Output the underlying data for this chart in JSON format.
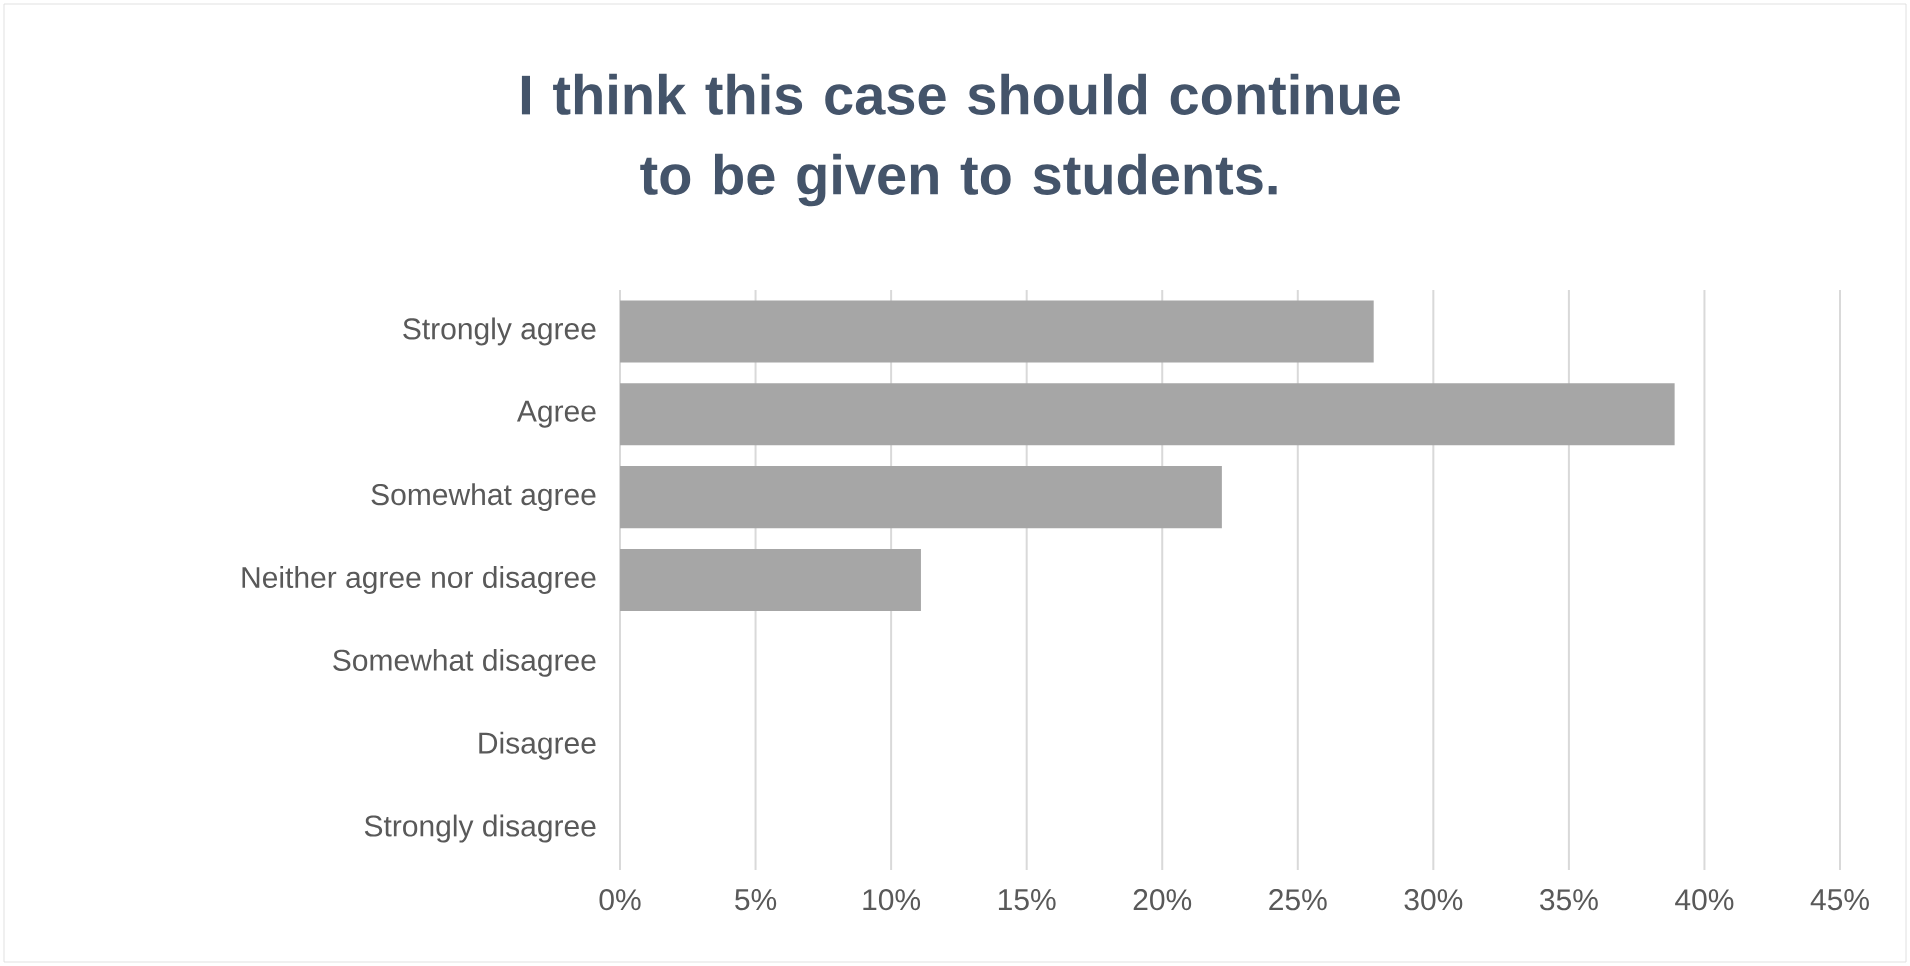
{
  "chart_data": {
    "type": "bar",
    "orientation": "horizontal",
    "title": "I think this case should continue to be given to students.",
    "categories": [
      "Strongly agree",
      "Agree",
      "Somewhat agree",
      "Neither agree nor disagree",
      "Somewhat disagree",
      "Disagree",
      "Strongly disagree"
    ],
    "values": [
      27.8,
      38.9,
      22.2,
      11.1,
      0,
      0,
      0
    ],
    "color": "#a6a6a6",
    "xlim": [
      0,
      45
    ],
    "xticks": [
      {
        "value": 0,
        "label": "0%"
      },
      {
        "value": 5,
        "label": "5%"
      },
      {
        "value": 10,
        "label": "10%"
      },
      {
        "value": 15,
        "label": "15%"
      },
      {
        "value": 20,
        "label": "20%"
      },
      {
        "value": 25,
        "label": "25%"
      },
      {
        "value": 30,
        "label": "30%"
      },
      {
        "value": 35,
        "label": "35%"
      },
      {
        "value": 40,
        "label": "40%"
      },
      {
        "value": 45,
        "label": "45%"
      }
    ],
    "grid": "x"
  }
}
